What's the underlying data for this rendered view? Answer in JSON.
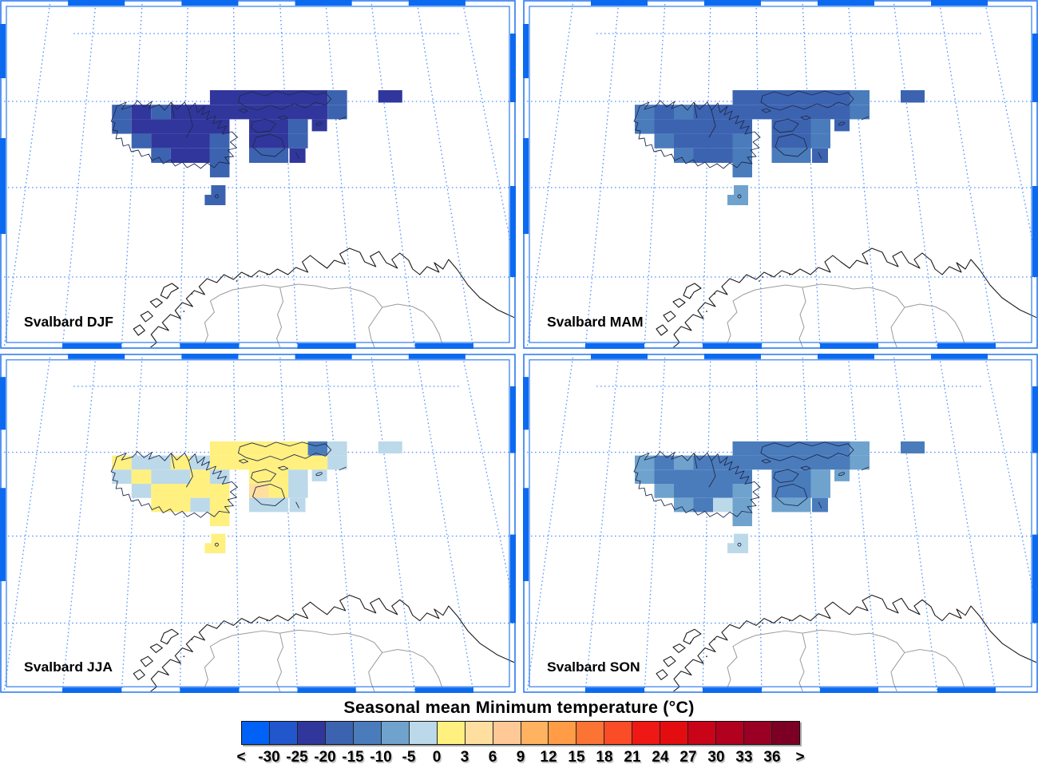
{
  "panels": [
    {
      "id": "djf",
      "label": "Svalbard DJF",
      "cells": [
        [
          262.5,
          113,
          147,
          18.2,
          2
        ],
        [
          409.5,
          113,
          24.5,
          18.2,
          3
        ],
        [
          140,
          131.2,
          24.5,
          18.2,
          3
        ],
        [
          164.5,
          131.2,
          24.5,
          18.2,
          2
        ],
        [
          189,
          131.2,
          24.5,
          18.2,
          3
        ],
        [
          213.5,
          131.2,
          196,
          18.2,
          2
        ],
        [
          409.5,
          131.2,
          24.5,
          18.2,
          3
        ],
        [
          140,
          149.4,
          24.5,
          18.2,
          3
        ],
        [
          164.5,
          149.4,
          122.5,
          18.2,
          2
        ],
        [
          311.5,
          149.4,
          49,
          18.2,
          2
        ],
        [
          360.5,
          149.4,
          24.5,
          18.2,
          3
        ],
        [
          390,
          149.4,
          19,
          15,
          2
        ],
        [
          164.5,
          167.6,
          24.5,
          18.2,
          3
        ],
        [
          189,
          167.6,
          73.5,
          18.2,
          2
        ],
        [
          262.5,
          167.6,
          24.5,
          18.2,
          3
        ],
        [
          311.5,
          167.6,
          49,
          18.2,
          2
        ],
        [
          360.5,
          167.6,
          24.5,
          18.2,
          3
        ],
        [
          189,
          185.8,
          24.5,
          18.2,
          3
        ],
        [
          213.5,
          185.8,
          49,
          18.2,
          2
        ],
        [
          262.5,
          185.8,
          24.5,
          18.2,
          3
        ],
        [
          311.5,
          185.8,
          49,
          18.2,
          3
        ],
        [
          362,
          185.8,
          20,
          18.2,
          2
        ],
        [
          262.5,
          204,
          24.5,
          18.2,
          3
        ],
        [
          473,
          113,
          30,
          15.5,
          2
        ],
        [
          264,
          232,
          18,
          13,
          3
        ],
        [
          256,
          244,
          26,
          13,
          3
        ]
      ]
    },
    {
      "id": "mam",
      "label": "Svalbard MAM",
      "cells": [
        [
          262.5,
          113,
          147,
          18.2,
          3
        ],
        [
          409.5,
          113,
          24.5,
          18.2,
          4
        ],
        [
          140,
          131.2,
          24.5,
          18.2,
          4
        ],
        [
          164.5,
          131.2,
          24.5,
          18.2,
          3
        ],
        [
          189,
          131.2,
          24.5,
          18.2,
          4
        ],
        [
          213.5,
          131.2,
          196,
          18.2,
          3
        ],
        [
          409.5,
          131.2,
          24.5,
          18.2,
          4
        ],
        [
          140,
          149.4,
          24.5,
          18.2,
          4
        ],
        [
          164.5,
          149.4,
          122.5,
          18.2,
          3
        ],
        [
          311.5,
          149.4,
          49,
          18.2,
          3
        ],
        [
          360.5,
          149.4,
          24.5,
          18.2,
          4
        ],
        [
          390,
          149.4,
          19,
          15,
          3
        ],
        [
          164.5,
          167.6,
          24.5,
          18.2,
          4
        ],
        [
          189,
          167.6,
          73.5,
          18.2,
          3
        ],
        [
          262.5,
          167.6,
          24.5,
          18.2,
          4
        ],
        [
          311.5,
          167.6,
          49,
          18.2,
          3
        ],
        [
          360.5,
          167.6,
          24.5,
          18.2,
          4
        ],
        [
          189,
          185.8,
          24.5,
          18.2,
          4
        ],
        [
          213.5,
          185.8,
          49,
          18.2,
          3
        ],
        [
          262.5,
          185.8,
          24.5,
          18.2,
          4
        ],
        [
          311.5,
          185.8,
          49,
          18.2,
          4
        ],
        [
          362,
          185.8,
          20,
          18.2,
          3
        ],
        [
          262.5,
          204,
          24.5,
          18.2,
          4
        ],
        [
          473,
          113,
          30,
          15.5,
          3
        ],
        [
          264,
          232,
          18,
          13,
          5
        ],
        [
          256,
          244,
          26,
          13,
          5
        ]
      ]
    },
    {
      "id": "jja",
      "label": "Svalbard JJA",
      "cells": [
        [
          262.5,
          113,
          122.5,
          18.2,
          7
        ],
        [
          385,
          113,
          24.5,
          18.2,
          4
        ],
        [
          409.5,
          113,
          24.5,
          18.2,
          6
        ],
        [
          140,
          131.2,
          24.5,
          18.2,
          7
        ],
        [
          164.5,
          131.2,
          49,
          18.2,
          6
        ],
        [
          213.5,
          131.2,
          24.5,
          18.2,
          7
        ],
        [
          238,
          131.2,
          24.5,
          18.2,
          6
        ],
        [
          262.5,
          131.2,
          147,
          18.2,
          7
        ],
        [
          409.5,
          131.2,
          24.5,
          18.2,
          6
        ],
        [
          140,
          149.4,
          24.5,
          18.2,
          6
        ],
        [
          164.5,
          149.4,
          24.5,
          18.2,
          7
        ],
        [
          189,
          149.4,
          49,
          18.2,
          6
        ],
        [
          238,
          149.4,
          24.5,
          18.2,
          7
        ],
        [
          262.5,
          149.4,
          24.5,
          18.2,
          6
        ],
        [
          311.5,
          149.4,
          49,
          18.2,
          7
        ],
        [
          360.5,
          149.4,
          24.5,
          18.2,
          6
        ],
        [
          390,
          149.4,
          19,
          15,
          6
        ],
        [
          164.5,
          167.6,
          24.5,
          18.2,
          6
        ],
        [
          189,
          167.6,
          98,
          18.2,
          7
        ],
        [
          311.5,
          167.6,
          24.5,
          18.2,
          8
        ],
        [
          336,
          167.6,
          24.5,
          18.2,
          7
        ],
        [
          360.5,
          167.6,
          24.5,
          18.2,
          6
        ],
        [
          189,
          185.8,
          49,
          18.2,
          7
        ],
        [
          238,
          185.8,
          24.5,
          18.2,
          6
        ],
        [
          262.5,
          185.8,
          24.5,
          18.2,
          7
        ],
        [
          311.5,
          185.8,
          49,
          18.2,
          6
        ],
        [
          362,
          185.8,
          20,
          18.2,
          6
        ],
        [
          262.5,
          204,
          24.5,
          18.2,
          7
        ],
        [
          473,
          113,
          30,
          15.5,
          6
        ],
        [
          264,
          232,
          18,
          13,
          7
        ],
        [
          256,
          244,
          26,
          13,
          7
        ]
      ]
    },
    {
      "id": "son",
      "label": "Svalbard SON",
      "cells": [
        [
          262.5,
          113,
          147,
          18.2,
          4
        ],
        [
          409.5,
          113,
          24.5,
          18.2,
          5
        ],
        [
          140,
          131.2,
          24.5,
          18.2,
          5
        ],
        [
          164.5,
          131.2,
          24.5,
          18.2,
          4
        ],
        [
          189,
          131.2,
          24.5,
          18.2,
          5
        ],
        [
          213.5,
          131.2,
          196,
          18.2,
          4
        ],
        [
          409.5,
          131.2,
          24.5,
          18.2,
          5
        ],
        [
          140,
          149.4,
          24.5,
          18.2,
          5
        ],
        [
          164.5,
          149.4,
          122.5,
          18.2,
          4
        ],
        [
          311.5,
          149.4,
          49,
          18.2,
          4
        ],
        [
          360.5,
          149.4,
          24.5,
          18.2,
          5
        ],
        [
          390,
          149.4,
          19,
          15,
          5
        ],
        [
          164.5,
          167.6,
          24.5,
          18.2,
          5
        ],
        [
          189,
          167.6,
          73.5,
          18.2,
          4
        ],
        [
          262.5,
          167.6,
          24.5,
          18.2,
          5
        ],
        [
          311.5,
          167.6,
          49,
          18.2,
          4
        ],
        [
          360.5,
          167.6,
          24.5,
          18.2,
          5
        ],
        [
          189,
          185.8,
          24.5,
          18.2,
          5
        ],
        [
          213.5,
          185.8,
          24.5,
          18.2,
          4
        ],
        [
          238,
          185.8,
          24.5,
          18.2,
          6
        ],
        [
          262.5,
          185.8,
          24.5,
          18.2,
          5
        ],
        [
          311.5,
          185.8,
          49,
          18.2,
          5
        ],
        [
          362,
          185.8,
          20,
          18.2,
          4
        ],
        [
          262.5,
          204,
          24.5,
          18.2,
          5
        ],
        [
          473,
          113,
          30,
          15.5,
          4
        ],
        [
          264,
          232,
          18,
          13,
          6
        ],
        [
          256,
          244,
          26,
          13,
          6
        ]
      ]
    }
  ],
  "colorbar": {
    "title": "Seasonal mean Minimum temperature (°C)",
    "tick_labels": [
      "<",
      "-30",
      "-25",
      "-20",
      "-15",
      "-10",
      "-5",
      "0",
      "3",
      "6",
      "9",
      "12",
      "15",
      "18",
      "21",
      "24",
      "27",
      "30",
      "33",
      "36",
      ">"
    ],
    "colors": [
      "#0061F7",
      "#2256CD",
      "#31369C",
      "#3C63B0",
      "#4A7CBC",
      "#6FA3CE",
      "#BCD9EA",
      "#FFF080",
      "#FFDFA0",
      "#FFC997",
      "#FFB25F",
      "#FF9C45",
      "#FB7434",
      "#FB4C28",
      "#F01814",
      "#E30D10",
      "#C90418",
      "#B2001F",
      "#990023",
      "#7C0023"
    ]
  },
  "map_colors": {
    "frame_blue": "#0c6af0",
    "border_blue": "#2b7bf0",
    "graticule_blue": "#4b8dff",
    "coast_black": "#1a1a1a",
    "inland_gray": "#9a9a9a",
    "outline_dark": "#1f2a4d"
  },
  "chart_data": {
    "type": "heatmap",
    "title": "Seasonal mean Minimum temperature (°C)",
    "units": "°C",
    "bin_boundaries": [
      -30,
      -25,
      -20,
      -15,
      -10,
      -5,
      0,
      3,
      6,
      9,
      12,
      15,
      18,
      21,
      24,
      27,
      30,
      33,
      36
    ],
    "legend_open_ends": [
      "<",
      ">"
    ],
    "panels": [
      {
        "label": "Svalbard DJF",
        "season": "DJF",
        "dominant_bin": "-25 to -20",
        "fringe_bin": "-20 to -15"
      },
      {
        "label": "Svalbard MAM",
        "season": "MAM",
        "dominant_bin": "-20 to -15",
        "fringe_bin": "-15 to -10",
        "bjornoya_bin": "-10 to -5"
      },
      {
        "label": "Svalbard JJA",
        "season": "JJA",
        "dominant_bin": "0 to 3",
        "fringe_bin": "-5 to 0",
        "isolated_bins": [
          "3 to 6",
          "-15 to -10"
        ]
      },
      {
        "label": "Svalbard SON",
        "season": "SON",
        "dominant_bin": "-15 to -10",
        "fringe_bin": "-10 to -5",
        "bjornoya_bin": "-5 to 0"
      }
    ]
  }
}
